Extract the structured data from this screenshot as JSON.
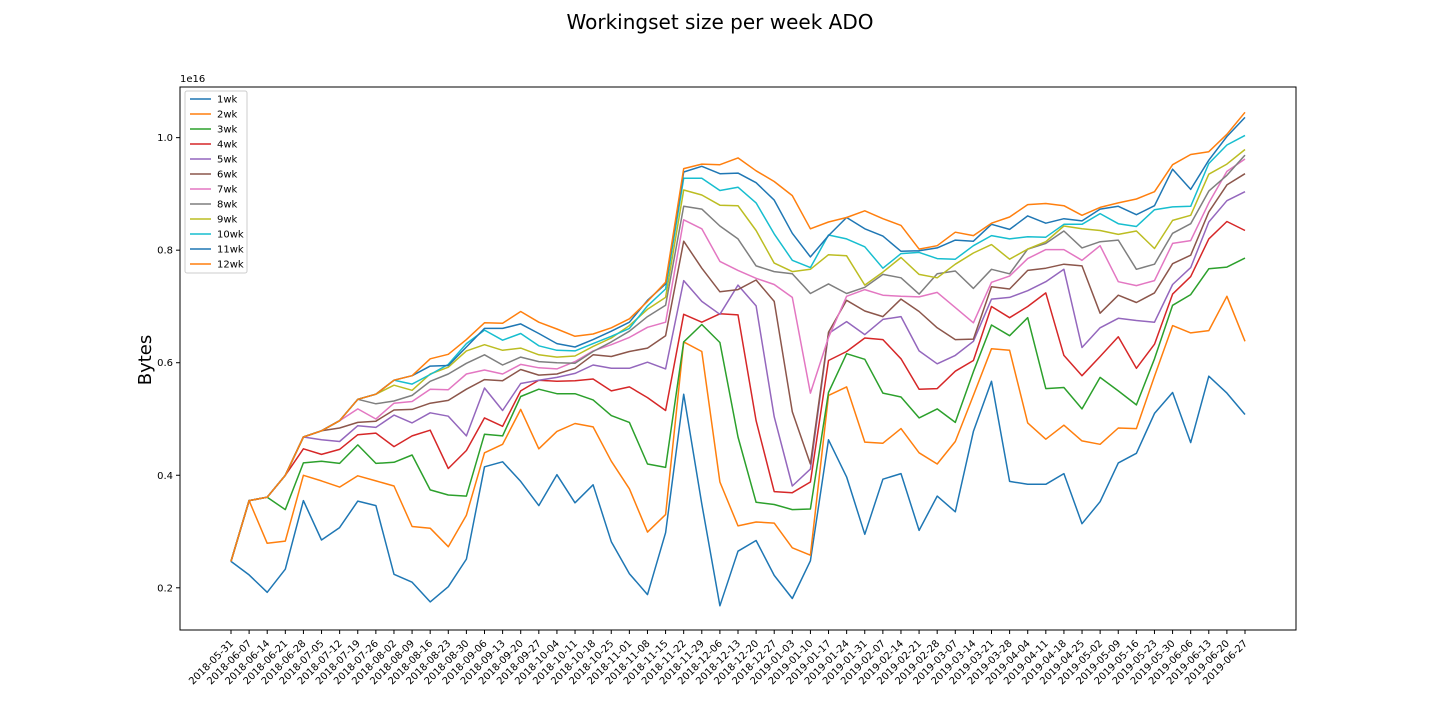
{
  "chart_data": {
    "type": "line",
    "title": "Workingset size per week ADO",
    "xlabel": "",
    "ylabel": "Bytes",
    "offset_label": "1e16",
    "ylim": [
      0.125,
      1.09
    ],
    "yticks": [
      0.2,
      0.4,
      0.6,
      0.8,
      1.0
    ],
    "ytick_labels": [
      "0.2",
      "0.4",
      "0.6",
      "0.8",
      "1.0"
    ],
    "grid": false,
    "legend_position": "top-left",
    "x": [
      "2018-05-31",
      "2018-06-07",
      "2018-06-14",
      "2018-06-21",
      "2018-06-28",
      "2018-07-05",
      "2018-07-12",
      "2018-07-19",
      "2018-07-26",
      "2018-08-02",
      "2018-08-09",
      "2018-08-16",
      "2018-08-23",
      "2018-08-30",
      "2018-09-06",
      "2018-09-13",
      "2018-09-20",
      "2018-09-27",
      "2018-10-04",
      "2018-10-11",
      "2018-10-18",
      "2018-10-25",
      "2018-11-01",
      "2018-11-08",
      "2018-11-15",
      "2018-11-22",
      "2018-11-29",
      "2018-12-06",
      "2018-12-13",
      "2018-12-20",
      "2018-12-27",
      "2019-01-03",
      "2019-01-10",
      "2019-01-17",
      "2019-01-24",
      "2019-01-31",
      "2019-02-07",
      "2019-02-14",
      "2019-02-21",
      "2019-02-28",
      "2019-03-07",
      "2019-03-14",
      "2019-03-21",
      "2019-03-28",
      "2019-04-04",
      "2019-04-11",
      "2019-04-18",
      "2019-04-25",
      "2019-05-02",
      "2019-05-09",
      "2019-05-16",
      "2019-05-23",
      "2019-05-30",
      "2019-06-06",
      "2019-06-13",
      "2019-06-20",
      "2019-06-27"
    ],
    "series": [
      {
        "name": "1wk",
        "color": "#1f77b4",
        "values": [
          0.247,
          0.223,
          0.192,
          0.233,
          0.355,
          0.285,
          0.307,
          0.354,
          0.346,
          0.224,
          0.21,
          0.175,
          0.202,
          0.251,
          0.415,
          0.424,
          0.389,
          0.346,
          0.401,
          0.351,
          0.383,
          0.282,
          0.225,
          0.188,
          0.298,
          0.544,
          0.349,
          0.168,
          0.265,
          0.284,
          0.222,
          0.181,
          0.248,
          0.463,
          0.397,
          0.295,
          0.393,
          0.403,
          0.302,
          0.363,
          0.335,
          0.478,
          0.567,
          0.389,
          0.384,
          0.384,
          0.403,
          0.314,
          0.353,
          0.422,
          0.439,
          0.51,
          0.547,
          0.458,
          0.576,
          0.546,
          0.508
        ]
      },
      {
        "name": "2wk",
        "color": "#ff7f0e",
        "values": [
          0.247,
          0.355,
          0.279,
          0.283,
          0.4,
          0.39,
          0.379,
          0.399,
          0.39,
          0.381,
          0.309,
          0.306,
          0.273,
          0.329,
          0.44,
          0.455,
          0.517,
          0.447,
          0.478,
          0.492,
          0.486,
          0.425,
          0.376,
          0.299,
          0.33,
          0.637,
          0.62,
          0.388,
          0.31,
          0.317,
          0.315,
          0.271,
          0.258,
          0.542,
          0.557,
          0.459,
          0.457,
          0.483,
          0.44,
          0.42,
          0.46,
          0.542,
          0.625,
          0.622,
          0.493,
          0.464,
          0.489,
          0.461,
          0.455,
          0.484,
          0.483,
          0.576,
          0.666,
          0.653,
          0.657,
          0.718,
          0.638
        ]
      },
      {
        "name": "3wk",
        "color": "#2ca02c",
        "values": [
          0.247,
          0.355,
          0.361,
          0.339,
          0.422,
          0.425,
          0.421,
          0.454,
          0.421,
          0.423,
          0.436,
          0.374,
          0.365,
          0.363,
          0.473,
          0.47,
          0.54,
          0.553,
          0.545,
          0.545,
          0.534,
          0.506,
          0.494,
          0.42,
          0.414,
          0.637,
          0.668,
          0.636,
          0.468,
          0.352,
          0.348,
          0.339,
          0.34,
          0.547,
          0.616,
          0.606,
          0.546,
          0.539,
          0.502,
          0.518,
          0.494,
          0.584,
          0.667,
          0.648,
          0.68,
          0.554,
          0.556,
          0.518,
          0.574,
          0.55,
          0.525,
          0.607,
          0.702,
          0.721,
          0.767,
          0.77,
          0.786
        ]
      },
      {
        "name": "4wk",
        "color": "#d62728",
        "values": [
          0.247,
          0.355,
          0.361,
          0.4,
          0.447,
          0.437,
          0.446,
          0.472,
          0.475,
          0.451,
          0.47,
          0.48,
          0.412,
          0.444,
          0.502,
          0.487,
          0.55,
          0.569,
          0.567,
          0.568,
          0.571,
          0.55,
          0.557,
          0.538,
          0.515,
          0.686,
          0.672,
          0.687,
          0.685,
          0.497,
          0.371,
          0.369,
          0.388,
          0.604,
          0.62,
          0.644,
          0.641,
          0.607,
          0.553,
          0.554,
          0.585,
          0.604,
          0.7,
          0.68,
          0.7,
          0.724,
          0.613,
          0.577,
          0.611,
          0.646,
          0.59,
          0.633,
          0.722,
          0.753,
          0.82,
          0.851,
          0.835
        ]
      },
      {
        "name": "5wk",
        "color": "#9467bd",
        "values": [
          0.247,
          0.355,
          0.361,
          0.4,
          0.468,
          0.463,
          0.46,
          0.488,
          0.485,
          0.507,
          0.493,
          0.511,
          0.505,
          0.47,
          0.555,
          0.515,
          0.563,
          0.569,
          0.574,
          0.581,
          0.596,
          0.59,
          0.59,
          0.601,
          0.589,
          0.746,
          0.709,
          0.686,
          0.738,
          0.701,
          0.504,
          0.381,
          0.411,
          0.652,
          0.673,
          0.65,
          0.677,
          0.682,
          0.621,
          0.598,
          0.613,
          0.638,
          0.713,
          0.716,
          0.728,
          0.744,
          0.766,
          0.627,
          0.662,
          0.679,
          0.675,
          0.672,
          0.739,
          0.769,
          0.85,
          0.888,
          0.904
        ]
      },
      {
        "name": "6wk",
        "color": "#8c564b",
        "values": [
          0.247,
          0.355,
          0.361,
          0.4,
          0.468,
          0.479,
          0.484,
          0.494,
          0.496,
          0.516,
          0.517,
          0.528,
          0.533,
          0.553,
          0.57,
          0.568,
          0.588,
          0.578,
          0.58,
          0.59,
          0.614,
          0.611,
          0.62,
          0.626,
          0.648,
          0.816,
          0.768,
          0.726,
          0.73,
          0.747,
          0.709,
          0.513,
          0.42,
          0.654,
          0.711,
          0.692,
          0.682,
          0.713,
          0.691,
          0.662,
          0.641,
          0.642,
          0.735,
          0.731,
          0.764,
          0.768,
          0.775,
          0.772,
          0.688,
          0.72,
          0.707,
          0.724,
          0.776,
          0.791,
          0.868,
          0.916,
          0.936
        ]
      },
      {
        "name": "7wk",
        "color": "#e377c2",
        "values": [
          0.247,
          0.355,
          0.361,
          0.4,
          0.468,
          0.479,
          0.497,
          0.518,
          0.5,
          0.528,
          0.531,
          0.553,
          0.552,
          0.58,
          0.587,
          0.58,
          0.597,
          0.591,
          0.589,
          0.602,
          0.621,
          0.632,
          0.645,
          0.663,
          0.672,
          0.854,
          0.838,
          0.78,
          0.764,
          0.75,
          0.739,
          0.716,
          0.546,
          0.645,
          0.718,
          0.73,
          0.72,
          0.718,
          0.717,
          0.725,
          0.698,
          0.671,
          0.743,
          0.754,
          0.785,
          0.801,
          0.801,
          0.782,
          0.808,
          0.744,
          0.737,
          0.746,
          0.812,
          0.817,
          0.884,
          0.94,
          0.962
        ]
      },
      {
        "name": "8wk",
        "color": "#7f7f7f",
        "values": [
          0.247,
          0.355,
          0.361,
          0.4,
          0.468,
          0.479,
          0.497,
          0.535,
          0.527,
          0.532,
          0.542,
          0.567,
          0.58,
          0.599,
          0.614,
          0.596,
          0.61,
          0.602,
          0.6,
          0.599,
          0.62,
          0.637,
          0.656,
          0.682,
          0.702,
          0.878,
          0.873,
          0.843,
          0.82,
          0.772,
          0.762,
          0.758,
          0.723,
          0.74,
          0.723,
          0.734,
          0.757,
          0.751,
          0.722,
          0.758,
          0.763,
          0.732,
          0.766,
          0.758,
          0.802,
          0.812,
          0.834,
          0.804,
          0.815,
          0.818,
          0.766,
          0.775,
          0.83,
          0.847,
          0.905,
          0.933,
          0.969
        ]
      },
      {
        "name": "9wk",
        "color": "#bcbd22",
        "values": [
          0.247,
          0.355,
          0.361,
          0.4,
          0.468,
          0.479,
          0.497,
          0.535,
          0.544,
          0.56,
          0.551,
          0.58,
          0.592,
          0.621,
          0.632,
          0.622,
          0.626,
          0.614,
          0.61,
          0.612,
          0.629,
          0.644,
          0.666,
          0.695,
          0.716,
          0.907,
          0.898,
          0.88,
          0.879,
          0.835,
          0.777,
          0.762,
          0.766,
          0.792,
          0.79,
          0.738,
          0.761,
          0.787,
          0.757,
          0.751,
          0.775,
          0.795,
          0.81,
          0.784,
          0.802,
          0.815,
          0.843,
          0.838,
          0.835,
          0.828,
          0.834,
          0.803,
          0.853,
          0.862,
          0.935,
          0.953,
          0.979
        ]
      },
      {
        "name": "10wk",
        "color": "#17becf",
        "values": [
          0.247,
          0.355,
          0.361,
          0.4,
          0.468,
          0.479,
          0.497,
          0.535,
          0.544,
          0.569,
          0.562,
          0.579,
          0.597,
          0.634,
          0.658,
          0.64,
          0.652,
          0.63,
          0.622,
          0.621,
          0.634,
          0.647,
          0.661,
          0.701,
          0.731,
          0.928,
          0.928,
          0.906,
          0.912,
          0.884,
          0.829,
          0.782,
          0.769,
          0.827,
          0.82,
          0.806,
          0.768,
          0.794,
          0.796,
          0.785,
          0.784,
          0.808,
          0.826,
          0.82,
          0.824,
          0.823,
          0.846,
          0.846,
          0.865,
          0.847,
          0.842,
          0.872,
          0.877,
          0.878,
          0.954,
          0.987,
          1.004
        ]
      },
      {
        "name": "11wk",
        "color": "#1f77b4",
        "values": [
          0.247,
          0.355,
          0.361,
          0.4,
          0.468,
          0.479,
          0.497,
          0.535,
          0.544,
          0.569,
          0.577,
          0.594,
          0.595,
          0.628,
          0.661,
          0.661,
          0.669,
          0.652,
          0.634,
          0.628,
          0.641,
          0.656,
          0.672,
          0.711,
          0.74,
          0.939,
          0.949,
          0.936,
          0.937,
          0.92,
          0.889,
          0.83,
          0.788,
          0.826,
          0.858,
          0.838,
          0.825,
          0.798,
          0.799,
          0.804,
          0.818,
          0.816,
          0.846,
          0.837,
          0.861,
          0.848,
          0.856,
          0.852,
          0.873,
          0.878,
          0.863,
          0.879,
          0.944,
          0.908,
          0.96,
          1.002,
          1.036
        ]
      },
      {
        "name": "12wk",
        "color": "#ff7f0e",
        "values": [
          0.247,
          0.355,
          0.361,
          0.4,
          0.468,
          0.479,
          0.497,
          0.535,
          0.544,
          0.569,
          0.577,
          0.607,
          0.615,
          0.641,
          0.671,
          0.67,
          0.691,
          0.672,
          0.66,
          0.647,
          0.651,
          0.662,
          0.678,
          0.709,
          0.743,
          0.945,
          0.953,
          0.952,
          0.964,
          0.941,
          0.922,
          0.897,
          0.838,
          0.85,
          0.858,
          0.87,
          0.856,
          0.844,
          0.802,
          0.808,
          0.832,
          0.826,
          0.848,
          0.859,
          0.881,
          0.883,
          0.879,
          0.862,
          0.876,
          0.884,
          0.891,
          0.904,
          0.952,
          0.97,
          0.975,
          1.006,
          1.045
        ]
      }
    ]
  }
}
